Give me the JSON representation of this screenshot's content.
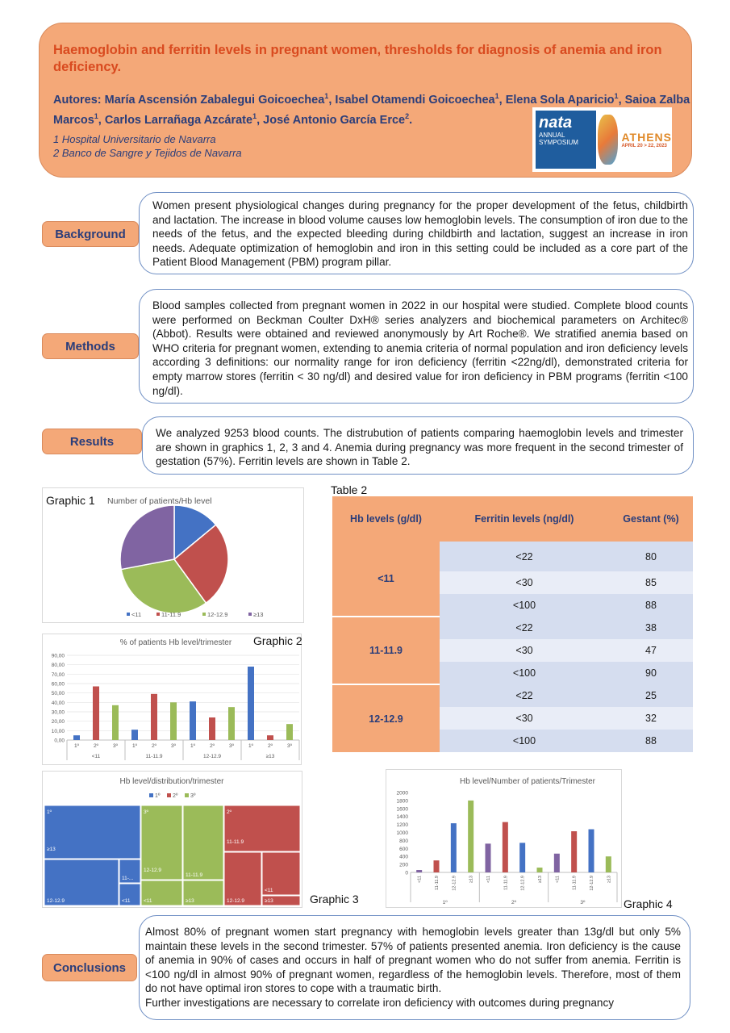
{
  "header": {
    "title": "Haemoglobin and ferritin levels in pregnant women, thresholds for diagnosis of anemia and iron deficiency.",
    "authors_prefix": "Autores: ",
    "authors": [
      {
        "name": "María Ascensión Zabalegui Goicoechea",
        "sup": "1",
        "sep": ", "
      },
      {
        "name": "Isabel Otamendi Goicoechea",
        "sup": "1",
        "sep": ", "
      },
      {
        "name": "Elena Sola Aparicio",
        "sup": "1",
        "sep": ", "
      },
      {
        "name": "Saioa Zalba Marcos",
        "sup": "1",
        "sep": ", "
      },
      {
        "name": "Carlos Larrañaga Azcárate",
        "sup": "1",
        "sep": ", "
      },
      {
        "name": "José Antonio García Erce",
        "sup": "2",
        "sep": "."
      }
    ],
    "affiliations": [
      "1 Hospital Universitario de Navarra",
      "2 Banco de Sangre y Tejidos de Navarra"
    ],
    "logo": {
      "name": "nata",
      "line1": "ANNUAL SYMPOSIUM",
      "city": "ATHENS",
      "dates": "APRIL 20 > 22, 2023"
    }
  },
  "sections": {
    "background": {
      "label": "Background",
      "text": "Women present physiological changes during pregnancy for the proper development of the fetus, childbirth and lactation. The increase in blood volume causes low hemoglobin levels. The consumption of iron due to the needs of the fetus, and the expected bleeding during childbirth and lactation, suggest an increase in iron needs. Adequate optimization of hemoglobin and iron in this setting could be included as a core part of the Patient Blood Management (PBM) program pillar."
    },
    "methods": {
      "label": "Methods",
      "text": "Blood samples collected from pregnant women in 2022 in our hospital were studied. Complete blood counts were performed on Beckman Coulter DxH® series analyzers and biochemical parameters on Architec® (Abbot). Results were obtained and reviewed anonymously by Art Roche®. We stratified anemia based on WHO criteria for pregnant women, extending to anemia criteria of normal population and iron deficiency levels according 3 definitions: our normality range for iron deficiency (ferritin <22ng/dl), demonstrated criteria for empty marrow stores (ferritin < 30 ng/dl) and desired value for iron deficiency in PBM programs (ferritin <100 ng/dl)."
    },
    "results": {
      "label": "Results",
      "text": "We analyzed 9253 blood counts. The distrubution of patients comparing haemoglobin levels and trimester are shown in graphics 1, 2, 3 and 4. Anemia during pregnancy was more frequent in the second trimester of gestation (57%).  Ferritin levels are shown in Table 2."
    },
    "conclusions": {
      "label": "Conclusions",
      "text": "Almost 80% of pregnant women start pregnancy with hemoglobin levels greater than 13g/dl but only 5% maintain these levels in the second trimester. 57% of patients presented anemia. Iron deficiency is the cause of anemia in 90% of cases and occurs in half of pregnant women who do not suffer from anemia. Ferritin is <100 ng/dl in almost 90% of pregnant women, regardless of the hemoglobin levels. Therefore, most of them do not have optimal iron stores to cope with a traumatic birth.",
      "text2": "Further investigations are necessary to correlate iron deficiency with outcomes during pregnancy"
    }
  },
  "graphic_labels": {
    "g1": "Graphic 1",
    "g2": "Graphic 2",
    "g3": "Graphic 3",
    "g4": "Graphic 4",
    "t2": "Table 2"
  },
  "colors": {
    "blue": "#4472c4",
    "red": "#c0504d",
    "green": "#9bbb59",
    "purple": "#8064a2",
    "accent": "#f4a878",
    "title": "#d94a1f",
    "navy": "#2a3d7a"
  },
  "table2": {
    "headers": [
      "Hb levels (g/dl)",
      "Ferritin levels (ng/dl)",
      "Gestant (%)"
    ],
    "groups": [
      {
        "hb": "<11",
        "rows": [
          [
            "<22",
            "80"
          ],
          [
            "<30",
            "85"
          ],
          [
            "<100",
            "88"
          ]
        ]
      },
      {
        "hb": "11-11.9",
        "rows": [
          [
            "<22",
            "38"
          ],
          [
            "<30",
            "47"
          ],
          [
            "<100",
            "90"
          ]
        ]
      },
      {
        "hb": "12-12.9",
        "rows": [
          [
            "<22",
            "25"
          ],
          [
            "<30",
            "32"
          ],
          [
            "<100",
            "88"
          ]
        ]
      }
    ]
  },
  "chart_data": [
    {
      "type": "pie",
      "title": "Number of patients/Hb level",
      "categories": [
        "<11",
        "11-11.9",
        "12-12.9",
        "≥13"
      ],
      "values": [
        14,
        26,
        32,
        28
      ],
      "legend": "bottom"
    },
    {
      "type": "bar",
      "title": "% of patients Hb level/trimester",
      "groups": [
        "<11",
        "11-11.9",
        "12-12.9",
        "≥13"
      ],
      "categories": [
        "1º",
        "2º",
        "3º"
      ],
      "values": [
        [
          5,
          57,
          37
        ],
        [
          11,
          49,
          40
        ],
        [
          41,
          24,
          35
        ],
        [
          78,
          5,
          17
        ]
      ],
      "ylim": [
        0,
        90
      ],
      "yticks": [
        "0,00",
        "10,00",
        "20,00",
        "30,00",
        "40,00",
        "50,00",
        "60,00",
        "70,00",
        "80,00",
        "90,00"
      ],
      "grid": true
    },
    {
      "type": "treemap",
      "title": "Hb level/distribution/trimester",
      "legend": [
        "1º",
        "2º",
        "3º"
      ],
      "tiles": [
        {
          "trimester": "1º",
          "labels": [
            "1º",
            "≥13"
          ]
        },
        {
          "trimester": "1º",
          "labels": [
            "12-12.9"
          ]
        },
        {
          "trimester": "1º",
          "labels": [
            "11-..."
          ]
        },
        {
          "trimester": "1º",
          "labels": [
            "<11"
          ]
        },
        {
          "trimester": "3º",
          "labels": [
            "3º",
            "12-12.9"
          ]
        },
        {
          "trimester": "3º",
          "labels": [
            "11-11.9"
          ]
        },
        {
          "trimester": "3º",
          "labels": [
            "<11"
          ]
        },
        {
          "trimester": "3º",
          "labels": [
            "≥13"
          ]
        },
        {
          "trimester": "2º",
          "labels": [
            "2º",
            "11-11.9"
          ]
        },
        {
          "trimester": "2º",
          "labels": [
            "12-12.9"
          ]
        },
        {
          "trimester": "2º",
          "labels": [
            "<11"
          ]
        },
        {
          "trimester": "2º",
          "labels": [
            "≥13"
          ]
        }
      ]
    },
    {
      "type": "bar",
      "title": "Hb level/Number of patients/Trimester",
      "groups": [
        "1º",
        "2º",
        "3º"
      ],
      "categories": [
        "<11",
        "11-11.9",
        "12-12.9",
        "≥13"
      ],
      "values": [
        [
          60,
          300,
          1230,
          1800
        ],
        [
          720,
          1260,
          740,
          120
        ],
        [
          470,
          1030,
          1080,
          400
        ]
      ],
      "ylim": [
        0,
        2000
      ],
      "yticks": [
        "0",
        "200",
        "400",
        "600",
        "800",
        "1000",
        "1200",
        "1400",
        "1600",
        "1800",
        "2000"
      ]
    }
  ]
}
